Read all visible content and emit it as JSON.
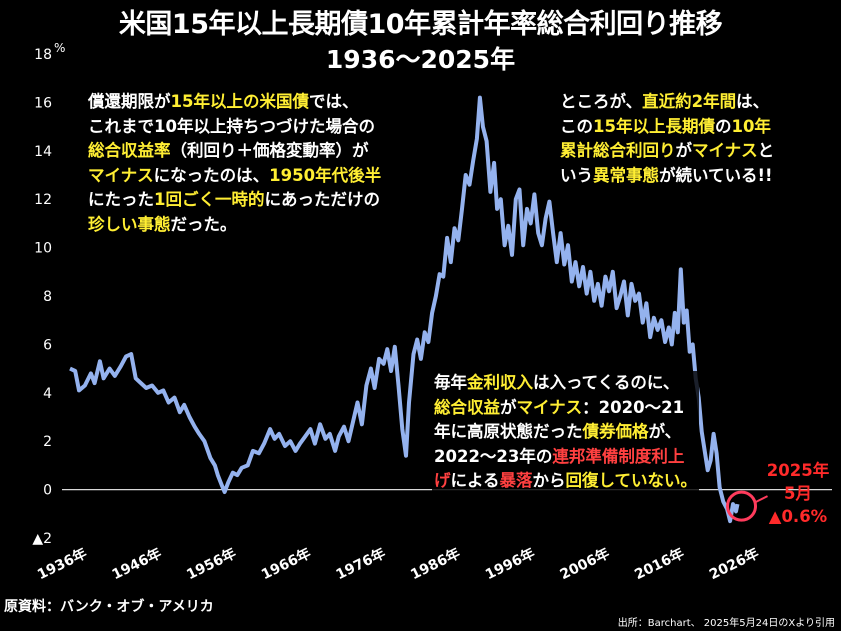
{
  "title": "米国15年以上長期債10年累計年率総合利回り推移",
  "subtitle": "1936〜2025年",
  "chart_data": {
    "type": "line",
    "unit": "%",
    "ylim": [
      -2,
      18
    ],
    "xlim": [
      1936,
      2026
    ],
    "y_ticks": [
      {
        "v": 18,
        "label": "18"
      },
      {
        "v": 16,
        "label": "16"
      },
      {
        "v": 14,
        "label": "14"
      },
      {
        "v": 12,
        "label": "12"
      },
      {
        "v": 10,
        "label": "10"
      },
      {
        "v": 8,
        "label": "8"
      },
      {
        "v": 6,
        "label": "6"
      },
      {
        "v": 4,
        "label": "4"
      },
      {
        "v": 2,
        "label": "2"
      },
      {
        "v": 0,
        "label": "0"
      },
      {
        "v": -2,
        "label": "▲2"
      }
    ],
    "x_ticks": [
      {
        "v": 1936,
        "label": "1936年"
      },
      {
        "v": 1946,
        "label": "1946年"
      },
      {
        "v": 1956,
        "label": "1956年"
      },
      {
        "v": 1966,
        "label": "1966年"
      },
      {
        "v": 1976,
        "label": "1976年"
      },
      {
        "v": 1986,
        "label": "1986年"
      },
      {
        "v": 1996,
        "label": "1996年"
      },
      {
        "v": 2006,
        "label": "2006年"
      },
      {
        "v": 2016,
        "label": "2016年"
      },
      {
        "v": 2026,
        "label": "2026年"
      }
    ],
    "grid": false,
    "zero_line": true,
    "series_color": "#94b2ee",
    "points": [
      [
        1936.0,
        5.0
      ],
      [
        1936.7,
        4.9
      ],
      [
        1937.2,
        4.1
      ],
      [
        1938.0,
        4.3
      ],
      [
        1938.8,
        4.8
      ],
      [
        1939.3,
        4.4
      ],
      [
        1940.0,
        5.3
      ],
      [
        1940.5,
        4.6
      ],
      [
        1941.3,
        5.0
      ],
      [
        1942.0,
        4.7
      ],
      [
        1942.8,
        5.1
      ],
      [
        1943.5,
        5.5
      ],
      [
        1944.2,
        5.6
      ],
      [
        1944.8,
        4.6
      ],
      [
        1945.5,
        4.4
      ],
      [
        1946.2,
        4.2
      ],
      [
        1947.0,
        4.3
      ],
      [
        1947.8,
        4.0
      ],
      [
        1948.5,
        4.1
      ],
      [
        1949.2,
        3.6
      ],
      [
        1950.0,
        3.8
      ],
      [
        1950.7,
        3.2
      ],
      [
        1951.3,
        3.5
      ],
      [
        1952.0,
        3.0
      ],
      [
        1952.7,
        2.6
      ],
      [
        1953.3,
        2.3
      ],
      [
        1954.0,
        2.0
      ],
      [
        1954.8,
        1.3
      ],
      [
        1955.4,
        1.0
      ],
      [
        1955.8,
        0.6
      ],
      [
        1956.3,
        0.2
      ],
      [
        1956.7,
        -0.1
      ],
      [
        1957.2,
        0.3
      ],
      [
        1957.8,
        0.7
      ],
      [
        1958.4,
        0.6
      ],
      [
        1959.0,
        0.9
      ],
      [
        1959.8,
        1.0
      ],
      [
        1960.5,
        1.6
      ],
      [
        1961.3,
        1.5
      ],
      [
        1962.0,
        1.9
      ],
      [
        1962.8,
        2.5
      ],
      [
        1963.4,
        2.1
      ],
      [
        1964.0,
        2.3
      ],
      [
        1964.8,
        1.8
      ],
      [
        1965.5,
        2.0
      ],
      [
        1966.2,
        1.6
      ],
      [
        1966.8,
        1.9
      ],
      [
        1967.5,
        2.2
      ],
      [
        1968.2,
        2.5
      ],
      [
        1968.8,
        1.9
      ],
      [
        1969.5,
        2.7
      ],
      [
        1970.2,
        2.1
      ],
      [
        1970.8,
        2.3
      ],
      [
        1971.5,
        1.6
      ],
      [
        1972.0,
        2.2
      ],
      [
        1972.7,
        2.6
      ],
      [
        1973.3,
        2.0
      ],
      [
        1973.9,
        2.8
      ],
      [
        1974.5,
        3.6
      ],
      [
        1975.1,
        2.7
      ],
      [
        1975.7,
        4.3
      ],
      [
        1976.3,
        5.0
      ],
      [
        1976.8,
        4.2
      ],
      [
        1977.4,
        5.4
      ],
      [
        1978.0,
        5.2
      ],
      [
        1978.5,
        5.8
      ],
      [
        1979.0,
        4.9
      ],
      [
        1979.5,
        5.9
      ],
      [
        1980.0,
        4.3
      ],
      [
        1980.5,
        2.5
      ],
      [
        1981.0,
        1.4
      ],
      [
        1981.4,
        3.6
      ],
      [
        1982.0,
        5.6
      ],
      [
        1982.5,
        6.2
      ],
      [
        1983.0,
        5.4
      ],
      [
        1983.5,
        6.5
      ],
      [
        1984.0,
        6.1
      ],
      [
        1984.5,
        7.3
      ],
      [
        1985.0,
        8.0
      ],
      [
        1985.5,
        8.9
      ],
      [
        1986.0,
        8.8
      ],
      [
        1986.5,
        10.4
      ],
      [
        1987.0,
        9.4
      ],
      [
        1987.5,
        10.8
      ],
      [
        1988.0,
        10.3
      ],
      [
        1988.5,
        11.6
      ],
      [
        1989.0,
        13.0
      ],
      [
        1989.5,
        12.6
      ],
      [
        1990.0,
        13.6
      ],
      [
        1990.5,
        14.5
      ],
      [
        1990.9,
        16.2
      ],
      [
        1991.3,
        15.0
      ],
      [
        1991.8,
        14.4
      ],
      [
        1992.3,
        12.3
      ],
      [
        1992.8,
        13.5
      ],
      [
        1993.2,
        11.6
      ],
      [
        1993.7,
        12.0
      ],
      [
        1994.2,
        10.1
      ],
      [
        1994.7,
        10.9
      ],
      [
        1995.2,
        9.7
      ],
      [
        1995.7,
        12.0
      ],
      [
        1996.2,
        12.4
      ],
      [
        1996.7,
        10.1
      ],
      [
        1997.2,
        11.6
      ],
      [
        1997.7,
        11.0
      ],
      [
        1998.2,
        12.2
      ],
      [
        1998.7,
        10.6
      ],
      [
        1999.2,
        10.1
      ],
      [
        1999.7,
        11.2
      ],
      [
        2000.2,
        11.9
      ],
      [
        2000.7,
        10.6
      ],
      [
        2001.2,
        9.4
      ],
      [
        2001.7,
        10.6
      ],
      [
        2002.2,
        9.3
      ],
      [
        2002.7,
        10.1
      ],
      [
        2003.2,
        8.6
      ],
      [
        2003.7,
        9.4
      ],
      [
        2004.2,
        8.4
      ],
      [
        2004.7,
        9.2
      ],
      [
        2005.2,
        8.1
      ],
      [
        2005.7,
        9.0
      ],
      [
        2006.2,
        7.8
      ],
      [
        2006.7,
        8.5
      ],
      [
        2007.2,
        7.6
      ],
      [
        2007.7,
        8.8
      ],
      [
        2008.2,
        8.2
      ],
      [
        2008.7,
        9.0
      ],
      [
        2009.2,
        7.5
      ],
      [
        2009.7,
        8.0
      ],
      [
        2010.2,
        8.6
      ],
      [
        2010.7,
        7.2
      ],
      [
        2011.2,
        8.5
      ],
      [
        2011.7,
        7.8
      ],
      [
        2012.2,
        8.1
      ],
      [
        2012.7,
        6.9
      ],
      [
        2013.2,
        7.7
      ],
      [
        2013.7,
        6.3
      ],
      [
        2014.2,
        7.1
      ],
      [
        2014.7,
        6.6
      ],
      [
        2015.2,
        7.0
      ],
      [
        2015.7,
        6.1
      ],
      [
        2016.2,
        6.7
      ],
      [
        2016.6,
        6.0
      ],
      [
        2017.0,
        7.3
      ],
      [
        2017.4,
        6.5
      ],
      [
        2017.8,
        9.1
      ],
      [
        2018.2,
        6.9
      ],
      [
        2018.6,
        7.4
      ],
      [
        2019.0,
        5.7
      ],
      [
        2019.4,
        6.0
      ],
      [
        2019.8,
        4.6
      ],
      [
        2020.2,
        3.8
      ],
      [
        2020.6,
        2.4
      ],
      [
        2021.0,
        1.6
      ],
      [
        2021.4,
        0.8
      ],
      [
        2021.8,
        1.2
      ],
      [
        2022.2,
        2.3
      ],
      [
        2022.6,
        1.5
      ],
      [
        2023.0,
        0.1
      ],
      [
        2023.5,
        -0.5
      ],
      [
        2024.0,
        -0.8
      ],
      [
        2024.4,
        -1.3
      ],
      [
        2024.8,
        -0.6
      ],
      [
        2025.2,
        -0.9
      ],
      [
        2025.4,
        -0.6
      ]
    ]
  },
  "annotations": {
    "note1_lines": [
      [
        {
          "t": "償還期限が"
        },
        {
          "t": "15年以上の",
          "c": "hl"
        },
        {
          "t": "米国債",
          "c": "hl"
        },
        {
          "t": "では、"
        }
      ],
      [
        {
          "t": "これまで10年以上持ちつづけた場合の"
        }
      ],
      [
        {
          "t": "総合収益率",
          "c": "hl"
        },
        {
          "t": "（利回り＋価格変動率）が"
        }
      ],
      [
        {
          "t": "マイナス",
          "c": "hl"
        },
        {
          "t": "になったのは、"
        },
        {
          "t": "1950年代後半",
          "c": "hl"
        }
      ],
      [
        {
          "t": "にたった"
        },
        {
          "t": "1回ごく一時的",
          "c": "hl"
        },
        {
          "t": "にあっただけの"
        }
      ],
      [
        {
          "t": "珍しい事態",
          "c": "hl"
        },
        {
          "t": "だった。"
        }
      ]
    ],
    "note2_lines": [
      [
        {
          "t": "ところが、"
        },
        {
          "t": "直近約2年間",
          "c": "hl"
        },
        {
          "t": "は、"
        }
      ],
      [
        {
          "t": "この"
        },
        {
          "t": "15年以上長期債",
          "c": "hl"
        },
        {
          "t": "の"
        },
        {
          "t": "10年",
          "c": "hl"
        }
      ],
      [
        {
          "t": "累計総合利回り",
          "c": "hl"
        },
        {
          "t": "が"
        },
        {
          "t": "マイナス",
          "c": "hl"
        },
        {
          "t": "と"
        }
      ],
      [
        {
          "t": "いう"
        },
        {
          "t": "異常事態",
          "c": "hl"
        },
        {
          "t": "が続いている!!"
        }
      ]
    ],
    "note3_lines": [
      [
        {
          "t": "毎年"
        },
        {
          "t": "金利収入",
          "c": "hl"
        },
        {
          "t": "は入ってくるのに、"
        }
      ],
      [
        {
          "t": "総合収益",
          "c": "hl"
        },
        {
          "t": "が"
        },
        {
          "t": "マイナス",
          "c": "hl"
        },
        {
          "t": "：2020〜21"
        }
      ],
      [
        {
          "t": "年に高原状態だった"
        },
        {
          "t": "債券価格",
          "c": "hl"
        },
        {
          "t": "が、"
        }
      ],
      [
        {
          "t": "2022〜23年の"
        },
        {
          "t": "連邦準備制度利上",
          "c": "rd"
        }
      ],
      [
        {
          "t": "げ",
          "c": "rd"
        },
        {
          "t": "による"
        },
        {
          "t": "暴落",
          "c": "rd"
        },
        {
          "t": "から"
        },
        {
          "t": "回復していない。",
          "c": "hl"
        }
      ]
    ],
    "latest": [
      "2025年",
      "5月",
      "▲0.6%"
    ]
  },
  "source": "原資料：バンク・オブ・アメリカ",
  "credit": "出所：Barchart、 2025年5月24日のXより引用"
}
